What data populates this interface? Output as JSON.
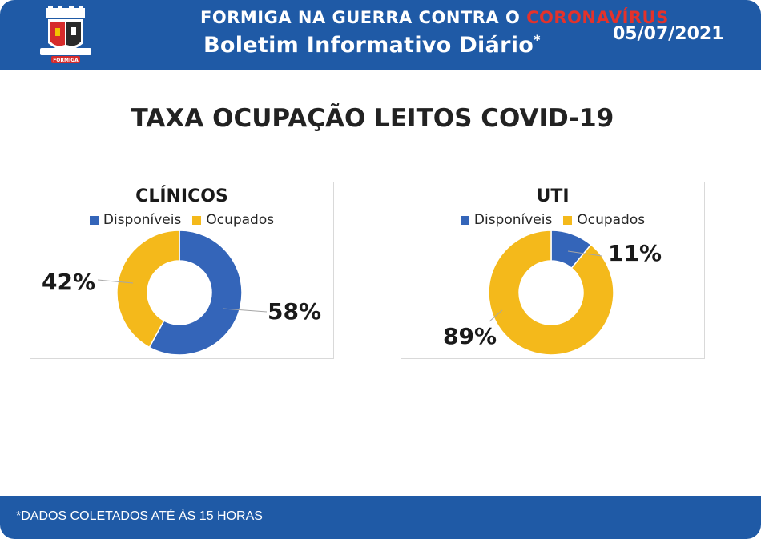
{
  "header": {
    "title_prefix": "FORMIGA NA GUERRA CONTRA O ",
    "title_accent": "CORONAVÍRUS",
    "subtitle": "Boletim Informativo Diário",
    "subtitle_mark": "*",
    "date": "05/07/2021",
    "crest_text": "FORMIGA",
    "colors": {
      "bar": "#1f5aa6",
      "accent": "#e4322b"
    }
  },
  "main_title": "TAXA OCUPAÇÃO LEITOS COVID-19",
  "chart_data": [
    {
      "type": "pie",
      "title": "CLÍNICOS",
      "legend": [
        "Disponíveis",
        "Ocupados"
      ],
      "legend_position": "top",
      "slices": [
        {
          "label": "Disponíveis",
          "value": 58,
          "display": "58%",
          "color": "#3465b9"
        },
        {
          "label": "Ocupados",
          "value": 42,
          "display": "42%",
          "color": "#f4b91b"
        }
      ]
    },
    {
      "type": "pie",
      "title": "UTI",
      "legend": [
        "Disponíveis",
        "Ocupados"
      ],
      "legend_position": "top",
      "slices": [
        {
          "label": "Disponíveis",
          "value": 11,
          "display": "11%",
          "color": "#3465b9"
        },
        {
          "label": "Ocupados",
          "value": 89,
          "display": "89%",
          "color": "#f4b91b"
        }
      ]
    }
  ],
  "footer": {
    "note": "*DADOS COLETADOS ATÉ ÀS 15 HORAS"
  }
}
